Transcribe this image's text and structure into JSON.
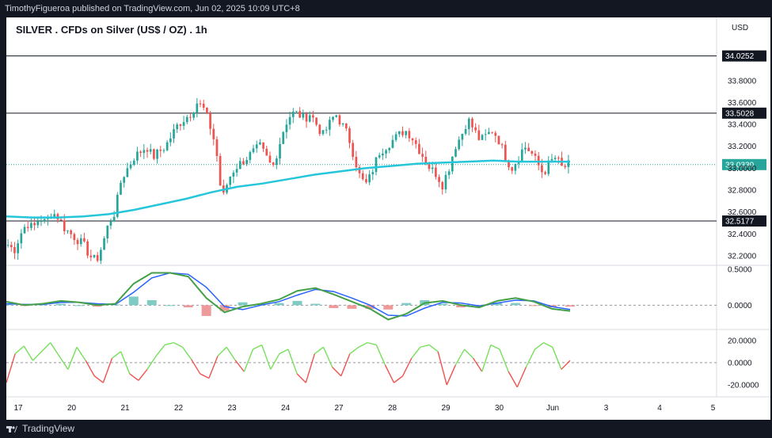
{
  "header": {
    "publish_text": "TimothyFigueroa published on TradingView.com, Jun 02, 2025 10:09 UTC+8"
  },
  "footer": {
    "brand": "TradingView"
  },
  "chart_title": "SILVER . CFDs on Silver (US$ / OZ) . 1h",
  "currency_label": "USD",
  "colors": {
    "up": "#26a69a",
    "down": "#ef5350",
    "ma": "#26c6da",
    "background": "#ffffff",
    "dark": "#131722"
  },
  "chart_data": [
    {
      "type": "candlestick",
      "title": "SILVER . CFDs on Silver (US$ / OZ) . 1h",
      "y_axis_ticks": [
        "33.8000",
        "33.6000",
        "33.4000",
        "33.2000",
        "33.0000",
        "32.8000",
        "32.6000",
        "32.4000",
        "32.2000"
      ],
      "ylim": [
        32.12,
        34.16
      ],
      "x_tick_labels": [
        "17",
        "20",
        "21",
        "22",
        "23",
        "24",
        "27",
        "28",
        "29",
        "30",
        "Jun",
        "3",
        "4",
        "5"
      ],
      "horizontal_lines": [
        "34.0252",
        "33.5028",
        "32.5177"
      ],
      "current_price": "33.0330",
      "price_path": [
        32.3,
        32.25,
        32.4,
        32.5,
        32.45,
        32.55,
        32.5,
        32.6,
        32.55,
        32.45,
        32.4,
        32.35,
        32.3,
        32.2,
        32.15,
        32.3,
        32.5,
        32.6,
        32.9,
        33.0,
        33.1,
        33.15,
        33.2,
        33.1,
        33.15,
        33.2,
        33.3,
        33.4,
        33.45,
        33.5,
        33.6,
        33.55,
        33.4,
        33.2,
        32.7,
        32.9,
        33.0,
        33.05,
        33.1,
        33.15,
        33.2,
        33.1,
        33.0,
        33.2,
        33.4,
        33.5,
        33.5,
        33.45,
        33.5,
        33.4,
        33.3,
        33.4,
        33.5,
        33.4,
        33.3,
        33.1,
        32.9,
        32.85,
        33.0,
        33.15,
        33.2,
        33.25,
        33.3,
        33.35,
        33.3,
        33.2,
        33.1,
        33.0,
        32.95,
        32.85,
        33.0,
        33.2,
        33.3,
        33.45,
        33.35,
        33.25,
        33.3,
        33.35,
        33.25,
        33.1,
        33.0,
        33.1,
        33.2,
        33.15,
        33.05,
        32.95,
        33.05,
        33.1,
        33.0,
        33.03
      ],
      "moving_average": [
        32.56,
        32.55,
        32.55,
        32.56,
        32.58,
        32.62,
        32.67,
        32.72,
        32.78,
        32.83,
        32.86,
        32.9,
        32.94,
        32.97,
        33.0,
        33.02,
        33.04,
        33.05,
        33.06,
        33.07,
        33.06,
        33.06,
        33.06
      ],
      "oscillator_1": {
        "y_axis_ticks": [
          "0.5000",
          "0.0000"
        ],
        "ylim": [
          -0.25,
          0.5
        ],
        "fast_line": [
          0.05,
          0.0,
          0.02,
          0.06,
          0.04,
          0.0,
          0.02,
          0.3,
          0.45,
          0.45,
          0.4,
          0.1,
          -0.1,
          -0.02,
          0.02,
          0.08,
          0.2,
          0.24,
          0.15,
          0.05,
          -0.05,
          -0.2,
          -0.12,
          0.03,
          0.06,
          0.0,
          -0.03,
          0.06,
          0.1,
          0.05,
          -0.05,
          -0.08
        ],
        "slow_line": [
          0.02,
          0.01,
          0.01,
          0.04,
          0.04,
          0.02,
          0.01,
          0.18,
          0.38,
          0.45,
          0.43,
          0.25,
          -0.02,
          -0.06,
          0.0,
          0.05,
          0.14,
          0.22,
          0.19,
          0.1,
          0.0,
          -0.14,
          -0.15,
          -0.04,
          0.04,
          0.03,
          -0.01,
          0.03,
          0.07,
          0.06,
          -0.02,
          -0.06
        ],
        "histogram": [
          0.03,
          -0.01,
          0.01,
          0.02,
          0.0,
          -0.02,
          0.01,
          0.12,
          0.07,
          0.0,
          -0.03,
          -0.15,
          -0.08,
          0.04,
          0.02,
          0.03,
          0.06,
          0.02,
          -0.04,
          -0.05,
          -0.05,
          -0.06,
          0.03,
          0.07,
          0.02,
          -0.03,
          -0.02,
          0.03,
          0.03,
          -0.01,
          -0.03,
          -0.02
        ]
      },
      "oscillator_2": {
        "y_axis_ticks": [
          "20.0000",
          "0.0000",
          "-20.0000"
        ],
        "ylim": [
          -30,
          27
        ],
        "values": [
          -18,
          8,
          15,
          2,
          10,
          18,
          6,
          -6,
          14,
          2,
          -12,
          -18,
          4,
          10,
          -10,
          -16,
          -6,
          6,
          16,
          18,
          14,
          3,
          -10,
          -14,
          6,
          14,
          2,
          -8,
          12,
          16,
          -6,
          8,
          12,
          -10,
          -18,
          8,
          14,
          -4,
          -12,
          8,
          14,
          18,
          16,
          -2,
          -18,
          -12,
          4,
          14,
          16,
          10,
          -20,
          -2,
          12,
          4,
          -8,
          16,
          12,
          -8,
          -22,
          -4,
          12,
          18,
          14,
          -6,
          2
        ],
        "threshold": 0
      }
    }
  ]
}
